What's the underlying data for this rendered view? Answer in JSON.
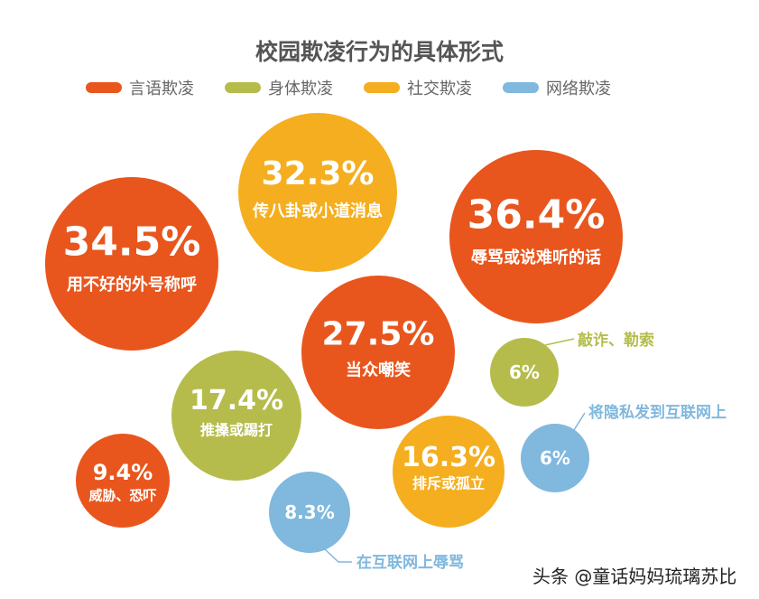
{
  "chart_data": {
    "type": "bubble",
    "title": "校园欺凌行为的具体形式",
    "legend": [
      {
        "name": "言语欺凌",
        "color": "#e8561e"
      },
      {
        "name": "身体欺凌",
        "color": "#b5bc4c"
      },
      {
        "name": "社交欺凌",
        "color": "#f5ae1f"
      },
      {
        "name": "网络欺凌",
        "color": "#80b8de"
      }
    ],
    "legend_placement": "top",
    "items": [
      {
        "value": 34.5,
        "value_label": "34.5%",
        "label": "用不好的外号称呼",
        "category": "言语欺凌"
      },
      {
        "value": 32.3,
        "value_label": "32.3%",
        "label": "传八卦或小道消息",
        "category": "社交欺凌"
      },
      {
        "value": 36.4,
        "value_label": "36.4%",
        "label": "辱骂或说难听的话",
        "category": "言语欺凌"
      },
      {
        "value": 27.5,
        "value_label": "27.5%",
        "label": "当众嘲笑",
        "category": "言语欺凌"
      },
      {
        "value": 6,
        "value_label": "6%",
        "label": "敲诈、勒索",
        "category": "身体欺凌",
        "callout": true
      },
      {
        "value": 17.4,
        "value_label": "17.4%",
        "label": "推搡或踢打",
        "category": "身体欺凌"
      },
      {
        "value": 6,
        "value_label": "6%",
        "label": "将隐私发到互联网上",
        "category": "网络欺凌",
        "callout": true
      },
      {
        "value": 9.4,
        "value_label": "9.4%",
        "label": "威胁、恐吓",
        "category": "言语欺凌"
      },
      {
        "value": 16.3,
        "value_label": "16.3%",
        "label": "排斥或孤立",
        "category": "社交欺凌"
      },
      {
        "value": 8.3,
        "value_label": "8.3%",
        "label": "在互联网上辱骂",
        "category": "网络欺凌",
        "callout": true
      }
    ]
  },
  "watermark": "头条 @童话妈妈琉璃苏比"
}
